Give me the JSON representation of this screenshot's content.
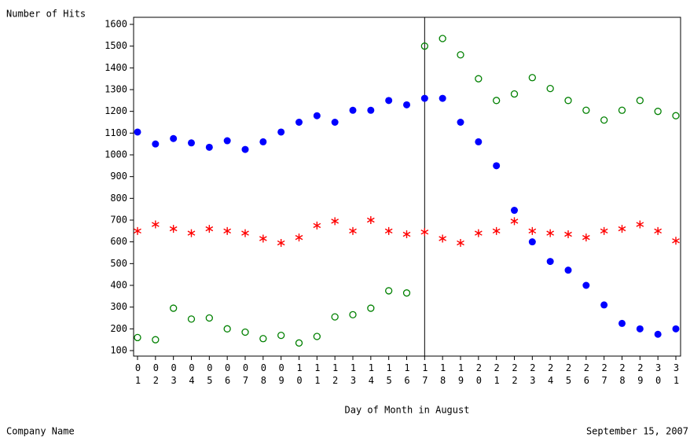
{
  "chart_data": {
    "type": "scatter",
    "y_label": "Number of Hits",
    "x_label": "Day of Month in August",
    "footnote_left": "Company Name",
    "footnote_right": "September 15, 2007",
    "categories": [
      "01",
      "02",
      "03",
      "04",
      "05",
      "06",
      "07",
      "08",
      "09",
      "10",
      "11",
      "12",
      "13",
      "14",
      "15",
      "16",
      "17",
      "18",
      "19",
      "20",
      "21",
      "22",
      "23",
      "24",
      "25",
      "26",
      "27",
      "28",
      "29",
      "30",
      "31"
    ],
    "reference_line": "17",
    "ylim": [
      100,
      1600
    ],
    "yticks": [
      100,
      200,
      300,
      400,
      500,
      600,
      700,
      800,
      900,
      1000,
      1100,
      1200,
      1300,
      1400,
      1500,
      1600
    ],
    "series": [
      {
        "color": "#0000ff",
        "marker": "dot",
        "values": [
          1105,
          1050,
          1075,
          1055,
          1035,
          1065,
          1025,
          1060,
          1105,
          1150,
          1180,
          1150,
          1205,
          1205,
          1250,
          1230,
          1260,
          1260,
          1150,
          1060,
          950,
          745,
          600,
          510,
          470,
          400,
          310,
          225,
          200,
          175,
          200
        ]
      },
      {
        "color": "#ff0000",
        "marker": "star",
        "values": [
          650,
          680,
          660,
          640,
          660,
          650,
          640,
          615,
          595,
          620,
          675,
          695,
          650,
          700,
          650,
          635,
          645,
          615,
          595,
          640,
          650,
          695,
          650,
          640,
          635,
          620,
          650,
          660,
          680,
          650,
          605
        ]
      },
      {
        "color": "#008000",
        "marker": "circle",
        "values": [
          160,
          150,
          295,
          245,
          250,
          200,
          185,
          155,
          170,
          135,
          165,
          255,
          265,
          295,
          375,
          365,
          1500,
          1535,
          1460,
          1350,
          1250,
          1280,
          1355,
          1305,
          1250,
          1205,
          1160,
          1205,
          1250,
          1200,
          1180
        ]
      }
    ]
  }
}
